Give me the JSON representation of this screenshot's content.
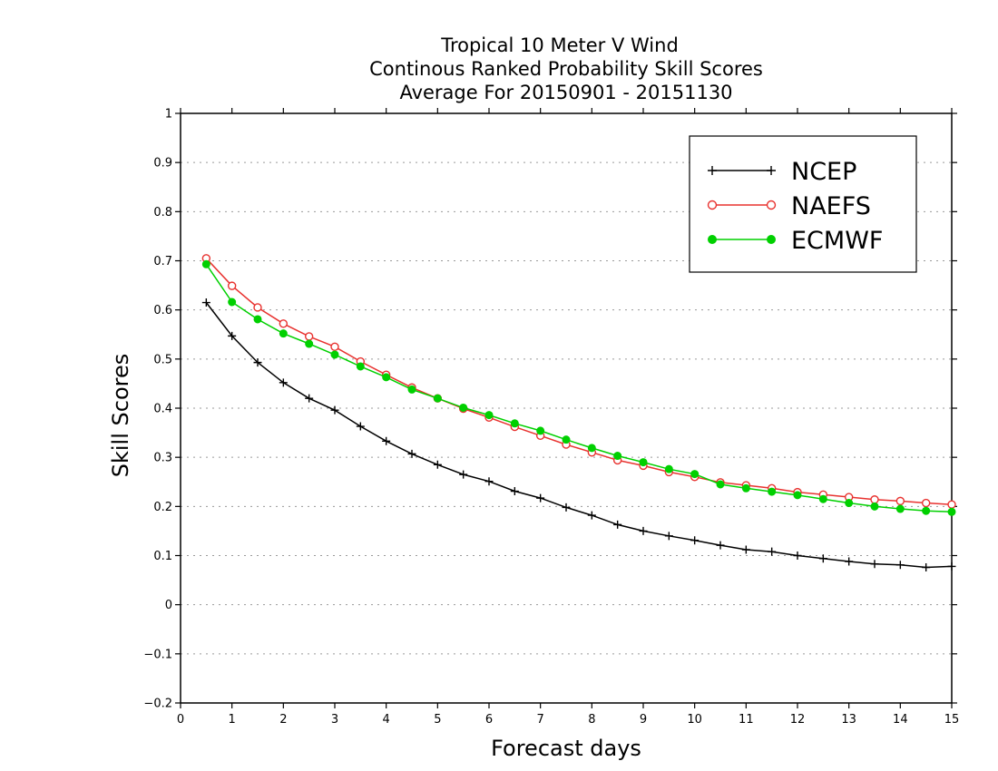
{
  "chart_data": {
    "type": "line",
    "title": [
      "Tropical 10 Meter V Wind",
      "Continous Ranked Probability Skill Scores",
      "Average For 20150901 - 20151130"
    ],
    "xlabel": "Forecast days",
    "ylabel": "Skill Scores",
    "xlim": [
      0,
      15
    ],
    "ylim": [
      -0.2,
      1
    ],
    "xticks": [
      0,
      1,
      2,
      3,
      4,
      5,
      6,
      7,
      8,
      9,
      10,
      11,
      12,
      13,
      14,
      15
    ],
    "xtick_labels": [
      "0",
      "1",
      "2",
      "3",
      "4",
      "5",
      "6",
      "7",
      "8",
      "9",
      "10",
      "11",
      "12",
      "13",
      "14",
      "15"
    ],
    "yticks": [
      -0.2,
      -0.1,
      0,
      0.1,
      0.2,
      0.3,
      0.4,
      0.5,
      0.6,
      0.7,
      0.8,
      0.9,
      1
    ],
    "ytick_labels": [
      "−0.2",
      "−0.1",
      "0",
      "0.1",
      "0.2",
      "0.3",
      "0.4",
      "0.5",
      "0.6",
      "0.7",
      "0.8",
      "0.9",
      "1"
    ],
    "grid": "horizontal dotted",
    "legend_position": "top-right",
    "x": [
      0.5,
      1,
      1.5,
      2,
      2.5,
      3,
      3.5,
      4,
      4.5,
      5,
      5.5,
      6,
      6.5,
      7,
      7.5,
      8,
      8.5,
      9,
      9.5,
      10,
      10.5,
      11,
      11.5,
      12,
      12.5,
      13,
      13.5,
      14,
      14.5,
      15
    ],
    "series": [
      {
        "name": "NCEP",
        "color": "#000000",
        "marker": "plus",
        "values": [
          0.615,
          0.547,
          0.493,
          0.452,
          0.42,
          0.396,
          0.363,
          0.333,
          0.307,
          0.285,
          0.265,
          0.251,
          0.231,
          0.217,
          0.198,
          0.182,
          0.163,
          0.15,
          0.14,
          0.131,
          0.121,
          0.112,
          0.108,
          0.1,
          0.094,
          0.088,
          0.083,
          0.081,
          0.076,
          0.078
        ]
      },
      {
        "name": "NAEFS",
        "color": "#e8322f",
        "marker": "open-circle",
        "values": [
          0.705,
          0.649,
          0.605,
          0.572,
          0.546,
          0.525,
          0.495,
          0.468,
          0.442,
          0.42,
          0.399,
          0.381,
          0.362,
          0.344,
          0.326,
          0.31,
          0.294,
          0.283,
          0.27,
          0.26,
          0.249,
          0.243,
          0.237,
          0.229,
          0.224,
          0.219,
          0.214,
          0.211,
          0.207,
          0.204
        ]
      },
      {
        "name": "ECMWF",
        "color": "#00d000",
        "marker": "filled-circle",
        "values": [
          0.693,
          0.616,
          0.581,
          0.552,
          0.531,
          0.509,
          0.485,
          0.463,
          0.438,
          0.42,
          0.401,
          0.386,
          0.369,
          0.354,
          0.336,
          0.319,
          0.303,
          0.29,
          0.276,
          0.266,
          0.245,
          0.237,
          0.23,
          0.223,
          0.215,
          0.207,
          0.2,
          0.195,
          0.191,
          0.189
        ]
      }
    ]
  }
}
